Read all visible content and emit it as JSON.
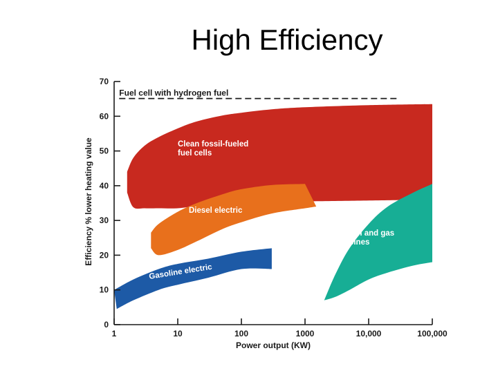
{
  "slide": {
    "title": "High Efficiency"
  },
  "chart_data": {
    "type": "area",
    "title": "High Efficiency",
    "xlabel": "Power output (KW)",
    "ylabel": "Efficiency % lower heating value",
    "x_scale": "log",
    "xlim": [
      1,
      100000
    ],
    "ylim": [
      0,
      70
    ],
    "x_ticks": [
      "1",
      "10",
      "100",
      "1000",
      "10,000",
      "100,000"
    ],
    "x_tick_values": [
      1,
      10,
      100,
      1000,
      10000,
      100000
    ],
    "y_ticks": [
      0,
      10,
      20,
      30,
      40,
      50,
      60,
      70
    ],
    "grid": false,
    "reference_lines": [
      {
        "name": "Fuel cell with hydrogen fuel",
        "y": 66.5,
        "x_range": [
          1.2,
          30000
        ],
        "style": "dashed",
        "color": "#1a1a1a"
      }
    ],
    "series": [
      {
        "name": "Clean fossil-fueled fuel cells",
        "label_lines": [
          "Clean fossil-fueled",
          "fuel cells"
        ],
        "color": "#c8291f",
        "upper": [
          [
            1.6,
            44
          ],
          [
            2,
            48
          ],
          [
            3,
            51.5
          ],
          [
            5,
            54
          ],
          [
            10,
            56.5
          ],
          [
            20,
            58.5
          ],
          [
            50,
            60.2
          ],
          [
            100,
            61
          ],
          [
            300,
            62
          ],
          [
            1000,
            62.6
          ],
          [
            10000,
            63.2
          ],
          [
            100000,
            63.5
          ]
        ],
        "lower": [
          [
            100000,
            36
          ],
          [
            1000,
            35.5
          ],
          [
            200,
            35.5
          ],
          [
            100,
            35.2
          ],
          [
            50,
            34.8
          ],
          [
            20,
            34.2
          ],
          [
            10,
            33.5
          ],
          [
            5,
            33.5
          ],
          [
            3,
            33.5
          ],
          [
            2,
            33.8
          ],
          [
            1.6,
            38
          ]
        ]
      },
      {
        "name": "Diesel electric",
        "label_lines": [
          "Diesel electric"
        ],
        "color": "#e8701c",
        "upper": [
          [
            3.8,
            26.5
          ],
          [
            5,
            29
          ],
          [
            10,
            32.5
          ],
          [
            20,
            35
          ],
          [
            50,
            37.5
          ],
          [
            100,
            39
          ],
          [
            300,
            40.2
          ],
          [
            1000,
            40.5
          ]
        ],
        "lower": [
          [
            1500,
            34
          ],
          [
            1000,
            33.5
          ],
          [
            300,
            32
          ],
          [
            100,
            29.5
          ],
          [
            50,
            27.5
          ],
          [
            20,
            24
          ],
          [
            10,
            21.5
          ],
          [
            5,
            20
          ],
          [
            3.8,
            22
          ]
        ]
      },
      {
        "name": "Gasoline electric",
        "label_lines": [
          "Gasoline electric"
        ],
        "color": "#1d5aa6",
        "upper": [
          [
            1,
            10
          ],
          [
            2,
            13
          ],
          [
            5,
            16
          ],
          [
            10,
            17.5
          ],
          [
            30,
            19
          ],
          [
            100,
            21
          ],
          [
            300,
            22
          ]
        ],
        "lower": [
          [
            300,
            16
          ],
          [
            100,
            16
          ],
          [
            30,
            13.5
          ],
          [
            10,
            11.5
          ],
          [
            5,
            10
          ],
          [
            2,
            7
          ],
          [
            1.1,
            4.5
          ]
        ]
      },
      {
        "name": "Steam and gas turbines",
        "label_lines": [
          "Steam and gas",
          "turbines"
        ],
        "color": "#17ae95",
        "upper": [
          [
            2000,
            7
          ],
          [
            3000,
            14.5
          ],
          [
            5000,
            22
          ],
          [
            10000,
            29
          ],
          [
            20000,
            34
          ],
          [
            50000,
            38
          ],
          [
            100000,
            40.5
          ]
        ],
        "lower": [
          [
            100000,
            18
          ],
          [
            50000,
            17
          ],
          [
            20000,
            15
          ],
          [
            10000,
            13
          ],
          [
            5000,
            10
          ],
          [
            3000,
            8
          ],
          [
            2000,
            7
          ]
        ]
      }
    ]
  }
}
